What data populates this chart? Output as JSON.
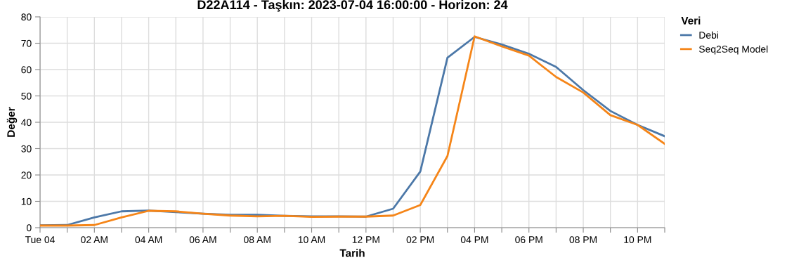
{
  "chart_data": {
    "type": "line",
    "title": "D22A114 - Taşkın: 2023-07-04 16:00:00 - Horizon: 24",
    "xlabel": "Tarih",
    "ylabel": "Değer",
    "legend_title": "Veri",
    "x": [
      "2023-07-04T00:00",
      "2023-07-04T01:00",
      "2023-07-04T02:00",
      "2023-07-04T03:00",
      "2023-07-04T04:00",
      "2023-07-04T05:00",
      "2023-07-04T06:00",
      "2023-07-04T07:00",
      "2023-07-04T08:00",
      "2023-07-04T09:00",
      "2023-07-04T10:00",
      "2023-07-04T11:00",
      "2023-07-04T12:00",
      "2023-07-04T13:00",
      "2023-07-04T14:00",
      "2023-07-04T15:00",
      "2023-07-04T16:00",
      "2023-07-04T17:00",
      "2023-07-04T18:00",
      "2023-07-04T19:00",
      "2023-07-04T20:00",
      "2023-07-04T21:00",
      "2023-07-04T22:00",
      "2023-07-04T23:00"
    ],
    "series": [
      {
        "name": "Debi",
        "color": "#4c78a8",
        "values": [
          0.9,
          1.0,
          3.9,
          6.2,
          6.5,
          5.9,
          5.3,
          4.9,
          4.9,
          4.5,
          4.3,
          4.3,
          4.2,
          7.2,
          21.3,
          64.5,
          72.4,
          69.5,
          66.0,
          61.0,
          52.2,
          44.3,
          39.0,
          34.7
        ]
      },
      {
        "name": "Seq2Seq Model",
        "color": "#f58518",
        "values": [
          0.8,
          0.8,
          1.0,
          3.9,
          6.4,
          6.2,
          5.3,
          4.6,
          4.3,
          4.5,
          4.1,
          4.2,
          4.2,
          4.6,
          8.6,
          27.2,
          72.6,
          68.8,
          65.3,
          57.2,
          51.3,
          42.7,
          39.0,
          31.8
        ]
      }
    ],
    "xlim": [
      "2023-07-04T00:00",
      "2023-07-04T23:00"
    ],
    "xticks": [
      {
        "value": "2023-07-04T00:00",
        "label": "Tue 04"
      },
      {
        "value": "2023-07-04T01:00",
        "label": null
      },
      {
        "value": "2023-07-04T02:00",
        "label": "02 AM"
      },
      {
        "value": "2023-07-04T03:00",
        "label": null
      },
      {
        "value": "2023-07-04T04:00",
        "label": "04 AM"
      },
      {
        "value": "2023-07-04T05:00",
        "label": null
      },
      {
        "value": "2023-07-04T06:00",
        "label": "06 AM"
      },
      {
        "value": "2023-07-04T07:00",
        "label": null
      },
      {
        "value": "2023-07-04T08:00",
        "label": "08 AM"
      },
      {
        "value": "2023-07-04T09:00",
        "label": null
      },
      {
        "value": "2023-07-04T10:00",
        "label": "10 AM"
      },
      {
        "value": "2023-07-04T11:00",
        "label": null
      },
      {
        "value": "2023-07-04T12:00",
        "label": "12 PM"
      },
      {
        "value": "2023-07-04T13:00",
        "label": null
      },
      {
        "value": "2023-07-04T14:00",
        "label": "02 PM"
      },
      {
        "value": "2023-07-04T15:00",
        "label": null
      },
      {
        "value": "2023-07-04T16:00",
        "label": "04 PM"
      },
      {
        "value": "2023-07-04T17:00",
        "label": null
      },
      {
        "value": "2023-07-04T18:00",
        "label": "06 PM"
      },
      {
        "value": "2023-07-04T19:00",
        "label": null
      },
      {
        "value": "2023-07-04T20:00",
        "label": "08 PM"
      },
      {
        "value": "2023-07-04T21:00",
        "label": null
      },
      {
        "value": "2023-07-04T22:00",
        "label": "10 PM"
      },
      {
        "value": "2023-07-04T23:00",
        "label": null
      }
    ],
    "ylim": [
      0,
      80
    ],
    "yticks": [
      0,
      10,
      20,
      30,
      40,
      50,
      60,
      70,
      80
    ],
    "grid": true,
    "legend": "right",
    "marker": "none",
    "line_style": "solid"
  }
}
